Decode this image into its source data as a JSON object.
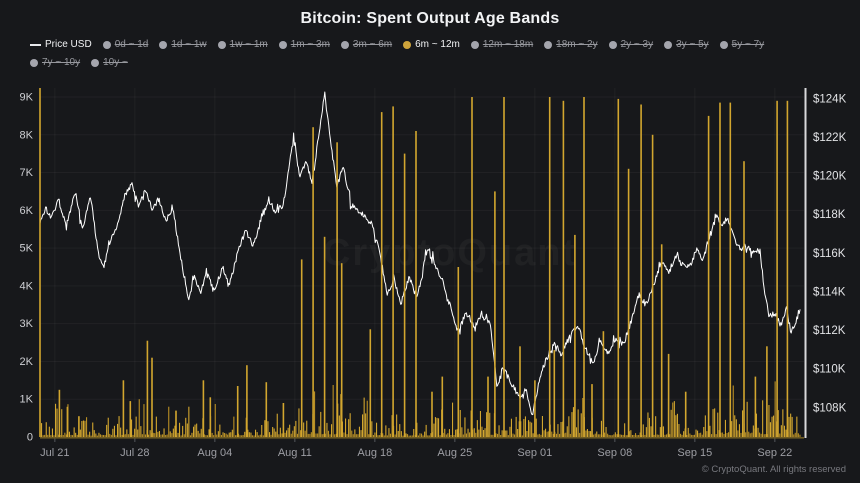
{
  "header": {
    "title": "Bitcoin: Spent Output Age Bands"
  },
  "legend": {
    "items": [
      {
        "label": "Price USD",
        "marker": "dash",
        "active": true
      },
      {
        "label": "0d ~ 1d",
        "marker": "dot",
        "active": false
      },
      {
        "label": "1d ~ 1w",
        "marker": "dot",
        "active": false
      },
      {
        "label": "1w ~ 1m",
        "marker": "dot",
        "active": false
      },
      {
        "label": "1m ~ 3m",
        "marker": "dot",
        "active": false
      },
      {
        "label": "3m ~ 6m",
        "marker": "dot",
        "active": false
      },
      {
        "label": "6m ~ 12m",
        "marker": "dot",
        "active": true
      },
      {
        "label": "12m ~ 18m",
        "marker": "dot",
        "active": false
      },
      {
        "label": "18m ~ 2y",
        "marker": "dot",
        "active": false
      },
      {
        "label": "2y ~ 3y",
        "marker": "dot",
        "active": false
      },
      {
        "label": "3y ~ 5y",
        "marker": "dot",
        "active": false
      },
      {
        "label": "5y ~ 7y",
        "marker": "dot",
        "active": false
      },
      {
        "label": "7y ~ 10y",
        "marker": "dot",
        "active": false
      },
      {
        "label": "10y ~",
        "marker": "dot",
        "active": false
      }
    ]
  },
  "watermark": {
    "text": "CryptoQuant"
  },
  "footer": {
    "copyright": "© CryptoQuant. All rights reserved"
  },
  "colors": {
    "background": "#17181b",
    "bar": "#d2a62f",
    "bar_dim": "#b98f24",
    "price_line": "#ffffff",
    "active_dot": "#cfa43b",
    "inactive_dot": "#a4a5ad",
    "left_axis_text": "#cfd0d4",
    "right_axis_text": "#e2e3e6",
    "x_axis_text": "#9d9ea4",
    "right_axis_line": "#d8d9db",
    "baseline": "#6d5a22",
    "tick_mark": "#55565c",
    "grid": "rgba(255,255,255,0.045)"
  },
  "chart_data": {
    "type": "bar+line",
    "title": "Bitcoin: Spent Output Age Bands",
    "x_domain_days": [
      0,
      66.5
    ],
    "x_start_date": "Jul 20",
    "x_ticks": [
      {
        "label": "Jul 21",
        "day": 1.3
      },
      {
        "label": "Jul 28",
        "day": 8.3
      },
      {
        "label": "Aug 04",
        "day": 15.3
      },
      {
        "label": "Aug 11",
        "day": 22.3
      },
      {
        "label": "Aug 18",
        "day": 29.3
      },
      {
        "label": "Aug 25",
        "day": 36.3
      },
      {
        "label": "Sep 01",
        "day": 43.3
      },
      {
        "label": "Sep 08",
        "day": 50.3
      },
      {
        "label": "Sep 15",
        "day": 57.3
      },
      {
        "label": "Sep 22",
        "day": 64.3
      }
    ],
    "left_axis": {
      "range": [
        0,
        9240
      ],
      "grid": true,
      "ticks": [
        {
          "label": "9K",
          "value": 9000
        },
        {
          "label": "8K",
          "value": 8000
        },
        {
          "label": "7K",
          "value": 7000
        },
        {
          "label": "6K",
          "value": 6000
        },
        {
          "label": "5K",
          "value": 5000
        },
        {
          "label": "4K",
          "value": 4000
        },
        {
          "label": "3K",
          "value": 3000
        },
        {
          "label": "2K",
          "value": 2000
        },
        {
          "label": "1K",
          "value": 1000
        },
        {
          "label": "0",
          "value": 0
        }
      ]
    },
    "right_axis": {
      "range_usd": [
        105000,
        124450
      ],
      "ticks": [
        {
          "label": "$124K",
          "value": 124000
        },
        {
          "label": "$122K",
          "value": 122000
        },
        {
          "label": "$120K",
          "value": 120000
        },
        {
          "label": "$118K",
          "value": 118000
        },
        {
          "label": "$116K",
          "value": 116000
        },
        {
          "label": "$114K",
          "value": 114000
        },
        {
          "label": "$112K",
          "value": 112000
        },
        {
          "label": "$110K",
          "value": 110000
        },
        {
          "label": "$108K",
          "value": 108000
        }
      ]
    },
    "series": [
      {
        "name": "Price USD",
        "type": "line",
        "axis": "right",
        "color": "#ffffff",
        "keypoints_day_priceK": [
          [
            0,
            117.6
          ],
          [
            0.5,
            118.3
          ],
          [
            1,
            117.8
          ],
          [
            1.6,
            118.8
          ],
          [
            2.3,
            117.4
          ],
          [
            3.1,
            119.2
          ],
          [
            3.7,
            117.2
          ],
          [
            4.4,
            119.0
          ],
          [
            5.1,
            116.0
          ],
          [
            5.6,
            115.3
          ],
          [
            6.2,
            116.8
          ],
          [
            6.8,
            117.5
          ],
          [
            7.4,
            118.9
          ],
          [
            8.0,
            119.6
          ],
          [
            8.6,
            118.4
          ],
          [
            9.2,
            119.3
          ],
          [
            9.8,
            118.2
          ],
          [
            10.4,
            118.8
          ],
          [
            11,
            117.6
          ],
          [
            11.6,
            118.4
          ],
          [
            12.3,
            115.8
          ],
          [
            13,
            113.6
          ],
          [
            13.5,
            114.8
          ],
          [
            14,
            113.9
          ],
          [
            14.6,
            114.9
          ],
          [
            15.2,
            114.1
          ],
          [
            16,
            115.2
          ],
          [
            16.6,
            114.4
          ],
          [
            17.3,
            116.0
          ],
          [
            18,
            117.2
          ],
          [
            18.6,
            116.4
          ],
          [
            19.3,
            117.5
          ],
          [
            20,
            118.8
          ],
          [
            20.6,
            118.1
          ],
          [
            21.3,
            118.5
          ],
          [
            22.2,
            122.2
          ],
          [
            22.7,
            119.9
          ],
          [
            23.3,
            120.7
          ],
          [
            23.8,
            119.6
          ],
          [
            24.9,
            124.3
          ],
          [
            25.5,
            121.4
          ],
          [
            26,
            119.4
          ],
          [
            26.5,
            120.5
          ],
          [
            27.2,
            118.5
          ],
          [
            28,
            118.1
          ],
          [
            29,
            117.5
          ],
          [
            29.6,
            116.4
          ],
          [
            30.4,
            113.8
          ],
          [
            31,
            114.6
          ],
          [
            31.6,
            113.4
          ],
          [
            32.3,
            114.8
          ],
          [
            33,
            113.6
          ],
          [
            33.9,
            116.3
          ],
          [
            34.6,
            115.4
          ],
          [
            35.3,
            114.4
          ],
          [
            36,
            113.0
          ],
          [
            36.6,
            111.9
          ],
          [
            37.3,
            112.9
          ],
          [
            38,
            112.2
          ],
          [
            38.7,
            112.7
          ],
          [
            39.4,
            112.4
          ],
          [
            40,
            108.9
          ],
          [
            40.5,
            110.1
          ],
          [
            41.2,
            109.3
          ],
          [
            42,
            108.4
          ],
          [
            42.5,
            108.9
          ],
          [
            43.1,
            107.6
          ],
          [
            43.7,
            109.5
          ],
          [
            44.3,
            110.5
          ],
          [
            45,
            111.4
          ],
          [
            45.6,
            110.7
          ],
          [
            46.3,
            111.6
          ],
          [
            47,
            112.3
          ],
          [
            47.7,
            111.1
          ],
          [
            48.4,
            110.3
          ],
          [
            49,
            111.4
          ],
          [
            49.7,
            110.8
          ],
          [
            50.4,
            111.6
          ],
          [
            51,
            111.2
          ],
          [
            51.7,
            112.4
          ],
          [
            52.4,
            113.9
          ],
          [
            53,
            113.3
          ],
          [
            53.7,
            114.4
          ],
          [
            54.4,
            115.6
          ],
          [
            55,
            114.9
          ],
          [
            55.6,
            115.9
          ],
          [
            56.3,
            115.3
          ],
          [
            57,
            115.5
          ],
          [
            57.5,
            116.2
          ],
          [
            58,
            115.6
          ],
          [
            58.6,
            116.9
          ],
          [
            59.2,
            117.9
          ],
          [
            59.6,
            117.4
          ],
          [
            60.2,
            117.8
          ],
          [
            60.7,
            116.8
          ],
          [
            61.3,
            116.2
          ],
          [
            61.8,
            116.4
          ],
          [
            62.4,
            116.0
          ],
          [
            63,
            116.1
          ],
          [
            63.4,
            114.0
          ],
          [
            63.8,
            112.7
          ],
          [
            64.3,
            112.9
          ],
          [
            64.8,
            112.2
          ],
          [
            65.3,
            113.2
          ],
          [
            65.7,
            111.9
          ],
          [
            66.1,
            112.4
          ],
          [
            66.5,
            113.1
          ]
        ]
      },
      {
        "name": "6m ~ 12m",
        "type": "bar",
        "axis": "left",
        "color": "#d2a62f",
        "spikes_day_valueK": [
          [
            0,
            9.25
          ],
          [
            1.7,
            1.25
          ],
          [
            2.4,
            0.8
          ],
          [
            3.4,
            0.55
          ],
          [
            7.3,
            1.5
          ],
          [
            7.9,
            0.95
          ],
          [
            9.4,
            2.55
          ],
          [
            9.8,
            2.1
          ],
          [
            11.9,
            0.7
          ],
          [
            14.3,
            1.5
          ],
          [
            14.9,
            1.05
          ],
          [
            17.3,
            1.35
          ],
          [
            18.1,
            1.9
          ],
          [
            19.8,
            1.45
          ],
          [
            21.3,
            0.9
          ],
          [
            22.9,
            4.7
          ],
          [
            23.9,
            8.2
          ],
          [
            24.9,
            5.3
          ],
          [
            26.0,
            7.8
          ],
          [
            26.4,
            4.6
          ],
          [
            28.9,
            2.85
          ],
          [
            29.9,
            8.6
          ],
          [
            30.9,
            8.75
          ],
          [
            31.9,
            7.5
          ],
          [
            32.9,
            8.1
          ],
          [
            34.3,
            1.2
          ],
          [
            35.2,
            1.6
          ],
          [
            36.6,
            4.5
          ],
          [
            37.8,
            9.0
          ],
          [
            39.2,
            1.6
          ],
          [
            39.8,
            6.5
          ],
          [
            40.6,
            9.0
          ],
          [
            42.0,
            2.4
          ],
          [
            43.3,
            1.5
          ],
          [
            44.6,
            9.0
          ],
          [
            45.0,
            2.3
          ],
          [
            45.8,
            8.9
          ],
          [
            46.8,
            5.35
          ],
          [
            47.6,
            9.0
          ],
          [
            48.3,
            1.4
          ],
          [
            49.3,
            2.8
          ],
          [
            50.6,
            8.95
          ],
          [
            51.5,
            7.1
          ],
          [
            52.6,
            8.8
          ],
          [
            53.6,
            8.0
          ],
          [
            54.4,
            5.1
          ],
          [
            55.0,
            2.2
          ],
          [
            56.5,
            1.2
          ],
          [
            58.5,
            8.5
          ],
          [
            59.5,
            8.85
          ],
          [
            60.4,
            8.85
          ],
          [
            61.6,
            7.3
          ],
          [
            62.6,
            1.6
          ],
          [
            63.6,
            2.4
          ],
          [
            64.5,
            8.9
          ],
          [
            65.4,
            8.9
          ]
        ],
        "base_noise_profile_day_maxK": [
          [
            0,
            0.45
          ],
          [
            2,
            0.5
          ],
          [
            5,
            0.35
          ],
          [
            8,
            0.55
          ],
          [
            10,
            0.6
          ],
          [
            12,
            0.4
          ],
          [
            15,
            0.5
          ],
          [
            18,
            0.45
          ],
          [
            20,
            0.4
          ],
          [
            23,
            0.85
          ],
          [
            25,
            0.7
          ],
          [
            27,
            0.75
          ],
          [
            29,
            0.5
          ],
          [
            31,
            0.35
          ],
          [
            33,
            0.4
          ],
          [
            35,
            0.45
          ],
          [
            37,
            0.55
          ],
          [
            39,
            0.6
          ],
          [
            41,
            0.5
          ],
          [
            43,
            0.35
          ],
          [
            45,
            0.85
          ],
          [
            47,
            0.7
          ],
          [
            49,
            0.5
          ],
          [
            51,
            0.45
          ],
          [
            53,
            0.55
          ],
          [
            55,
            0.6
          ],
          [
            57,
            0.5
          ],
          [
            59,
            0.75
          ],
          [
            61,
            0.85
          ],
          [
            63,
            0.7
          ],
          [
            65,
            0.8
          ],
          [
            66.5,
            0.6
          ]
        ]
      }
    ]
  }
}
